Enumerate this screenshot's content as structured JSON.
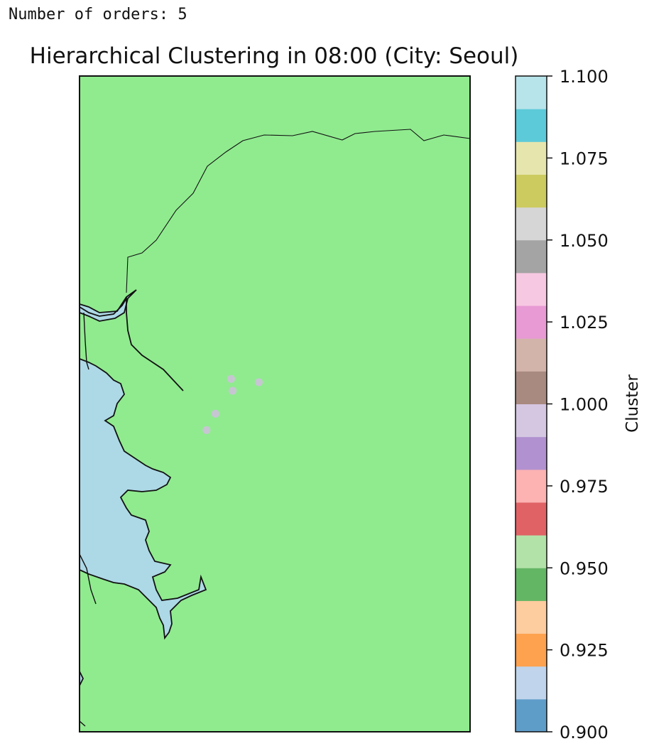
{
  "output": {
    "text": "Number of orders: 5"
  },
  "chart_data": {
    "type": "scatter",
    "title": "Hierarchical Clustering in 08:00 (City: Seoul)",
    "xlabel": "",
    "ylabel": "",
    "grid": false,
    "points": [
      {
        "x": 0.388,
        "y": 0.538,
        "cluster": 1.0
      },
      {
        "x": 0.392,
        "y": 0.52,
        "cluster": 1.0
      },
      {
        "x": 0.459,
        "y": 0.533,
        "cluster": 1.0
      },
      {
        "x": 0.348,
        "y": 0.485,
        "cluster": 1.0
      },
      {
        "x": 0.325,
        "y": 0.46,
        "cluster": 1.0
      }
    ],
    "xlim": [
      0,
      1
    ],
    "ylim": [
      0,
      1
    ],
    "colors": {
      "land": "#90eb8f",
      "water": "#add8e6",
      "point": "#c6c6d2"
    },
    "colorbar": {
      "label": "Cluster",
      "min": 0.9,
      "max": 1.1,
      "ticks": [
        "0.900",
        "0.925",
        "0.950",
        "0.975",
        "1.000",
        "1.025",
        "1.050",
        "1.075",
        "1.100"
      ],
      "colormap": [
        "#5f9dc9",
        "#c0d4ec",
        "#fea24f",
        "#fdcc9f",
        "#63b664",
        "#b3e2a9",
        "#e06264",
        "#fcb3b2",
        "#b191cf",
        "#d5c7e2",
        "#a98a80",
        "#d3b4aa",
        "#e89ad4",
        "#f7c8e2",
        "#a4a4a4",
        "#d6d6d6",
        "#cccb5f",
        "#e6e5ae",
        "#5ccad9",
        "#b7e4ea"
      ]
    }
  }
}
